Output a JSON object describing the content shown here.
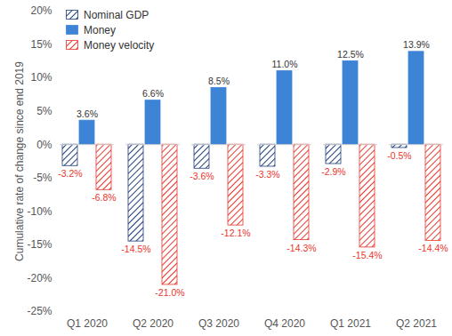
{
  "chart_data": {
    "type": "bar",
    "categories": [
      "Q1 2020",
      "Q2 2020",
      "Q3 2020",
      "Q4 2020",
      "Q1 2021",
      "Q2 2021"
    ],
    "series": [
      {
        "name": "Nominal GDP",
        "color": "#1f3f7a",
        "values": [
          -3.2,
          -14.5,
          -3.6,
          -3.3,
          -2.9,
          -0.5
        ],
        "value_labels": [
          "-3.2%",
          "-14.5%",
          "-3.6%",
          "-3.3%",
          "-2.9%",
          "-0.5%"
        ]
      },
      {
        "name": "Money",
        "color": "#3d84d6",
        "values": [
          3.6,
          6.6,
          8.5,
          11.0,
          12.5,
          13.9
        ],
        "value_labels": [
          "3.6%",
          "6.6%",
          "8.5%",
          "11.0%",
          "12.5%",
          "13.9%"
        ]
      },
      {
        "name": "Money velocity",
        "color": "#e8352b",
        "values": [
          -6.8,
          -21.0,
          -12.1,
          -14.3,
          -15.4,
          -14.4
        ],
        "value_labels": [
          "-6.8%",
          "-21.0%",
          "-12.1%",
          "-14.3%",
          "-15.4%",
          "-14.4%"
        ]
      }
    ],
    "y_label": "Cumulative rate of change since end 2019",
    "ylim": [
      -25,
      20
    ],
    "yticks": [
      {
        "value": -25,
        "label": "-25%"
      },
      {
        "value": -20,
        "label": "-20%"
      },
      {
        "value": -15,
        "label": "-15%"
      },
      {
        "value": -10,
        "label": "-10%"
      },
      {
        "value": -5,
        "label": "-5%"
      },
      {
        "value": 0,
        "label": "0%"
      },
      {
        "value": 5,
        "label": "5%"
      },
      {
        "value": 10,
        "label": "10%"
      },
      {
        "value": 15,
        "label": "15%"
      },
      {
        "value": 20,
        "label": "20%"
      }
    ],
    "data_labels": true,
    "legend": "top-left",
    "grid": false
  }
}
